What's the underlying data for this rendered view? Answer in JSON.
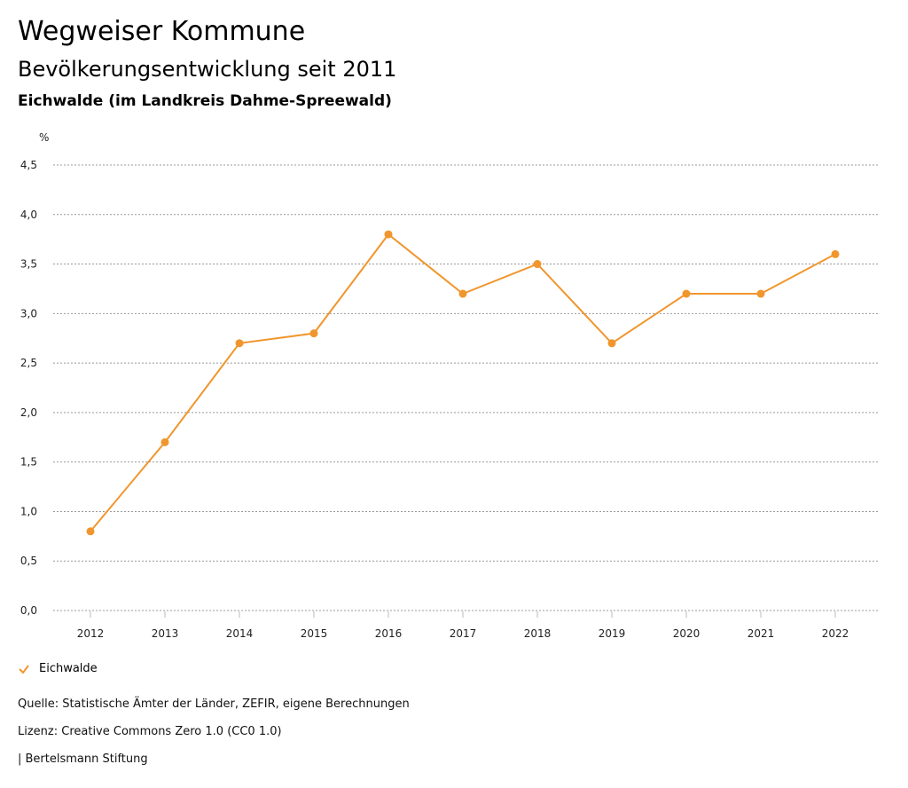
{
  "header": {
    "title": "Wegweiser Kommune",
    "subtitle": "Bevölkerungsentwicklung seit 2011",
    "region": "Eichwalde (im Landkreis Dahme-Spreewald)"
  },
  "chart_data": {
    "type": "line",
    "ylabel": "%",
    "ylim": [
      0,
      4.5
    ],
    "yticks": [
      "0,0",
      "0,5",
      "1,0",
      "1,5",
      "2,0",
      "2,5",
      "3,0",
      "3,5",
      "4,0",
      "4,5"
    ],
    "ytick_values": [
      0,
      0.5,
      1,
      1.5,
      2,
      2.5,
      3,
      3.5,
      4,
      4.5
    ],
    "categories": [
      "2012",
      "2013",
      "2014",
      "2015",
      "2016",
      "2017",
      "2018",
      "2019",
      "2020",
      "2021",
      "2022"
    ],
    "series": [
      {
        "name": "Eichwalde",
        "color": "#f0962d",
        "values": [
          0.8,
          1.7,
          2.7,
          2.8,
          3.8,
          3.2,
          3.5,
          2.7,
          3.2,
          3.2,
          3.6
        ]
      }
    ],
    "grid": true,
    "legend_position": "bottom-left"
  },
  "footer": {
    "source": "Quelle: Statistische Ämter der Länder, ZEFIR, eigene Berechnungen",
    "license": "Lizenz: Creative Commons Zero 1.0 (CC0 1.0)",
    "brand": "| Bertelsmann Stiftung"
  }
}
